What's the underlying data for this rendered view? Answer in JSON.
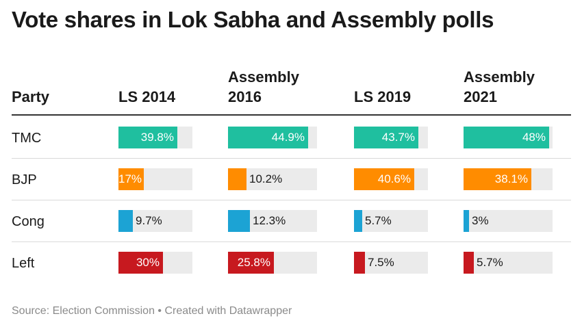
{
  "title": "Vote shares in Lok Sabha and Assembly polls",
  "footer": "Source: Election Commission • Created with Datawrapper",
  "colors": {
    "TMC": "#1fbf9f",
    "BJP": "#ff8c00",
    "Cong": "#1ca3d4",
    "Left": "#c7191f",
    "track": "#ebebeb"
  },
  "chart_data": {
    "type": "table",
    "title": "Vote shares in Lok Sabha and Assembly polls",
    "row_header": "Party",
    "columns": [
      "LS 2014",
      "Assembly 2016",
      "LS 2019",
      "Assembly 2021"
    ],
    "column_lines": [
      [
        "LS 2014"
      ],
      [
        "Assembly",
        "2016"
      ],
      [
        "LS 2019"
      ],
      [
        "Assembly",
        "2021"
      ]
    ],
    "max_value": 50,
    "rows": [
      {
        "party": "TMC",
        "values": [
          39.8,
          44.9,
          43.7,
          48
        ],
        "labels": [
          "39.8%",
          "44.9%",
          "43.7%",
          "48%"
        ]
      },
      {
        "party": "BJP",
        "values": [
          17,
          10.2,
          40.6,
          38.1
        ],
        "labels": [
          "17%",
          "10.2%",
          "40.6%",
          "38.1%"
        ]
      },
      {
        "party": "Cong",
        "values": [
          9.7,
          12.3,
          5.7,
          3
        ],
        "labels": [
          "9.7%",
          "12.3%",
          "5.7%",
          "3%"
        ]
      },
      {
        "party": "Left",
        "values": [
          30,
          25.8,
          7.5,
          5.7
        ],
        "labels": [
          "30%",
          "25.8%",
          "7.5%",
          "5.7%"
        ]
      }
    ],
    "source": "Election Commission"
  }
}
